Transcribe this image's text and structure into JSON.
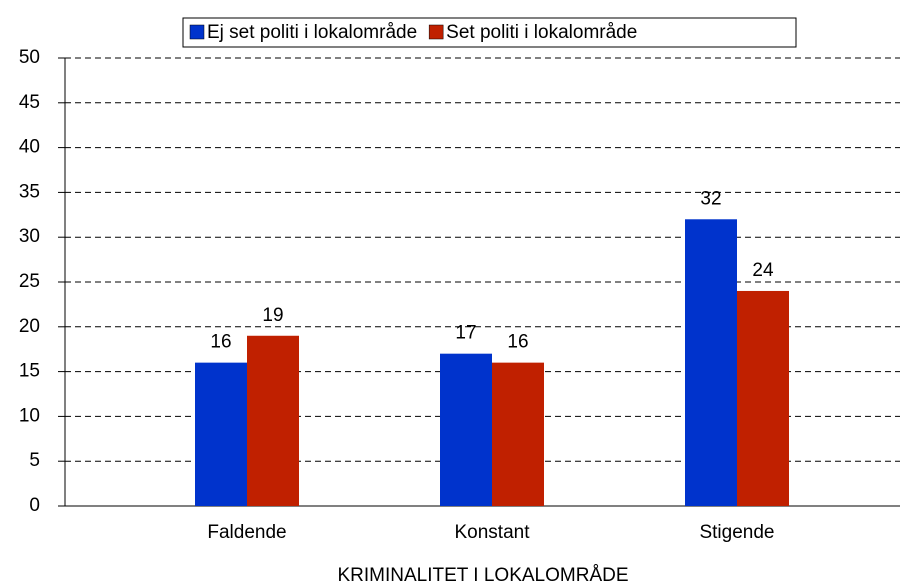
{
  "chart_data": {
    "type": "bar",
    "x_label": "KRIMINALITET I LOKALOMRÅDE",
    "categories": [
      "Faldende",
      "Konstant",
      "Stigende"
    ],
    "series": [
      {
        "name": "Ej set politi i lokalområde",
        "color": "#0033cc",
        "values": [
          16,
          17,
          32
        ]
      },
      {
        "name": "Set politi i lokalområde",
        "color": "#c02000",
        "values": [
          19,
          16,
          24
        ]
      }
    ],
    "ylim": [
      0,
      50
    ],
    "yticks": [
      0,
      5,
      10,
      15,
      20,
      25,
      30,
      35,
      40,
      45,
      50
    ],
    "grid": true,
    "legend": "top"
  }
}
